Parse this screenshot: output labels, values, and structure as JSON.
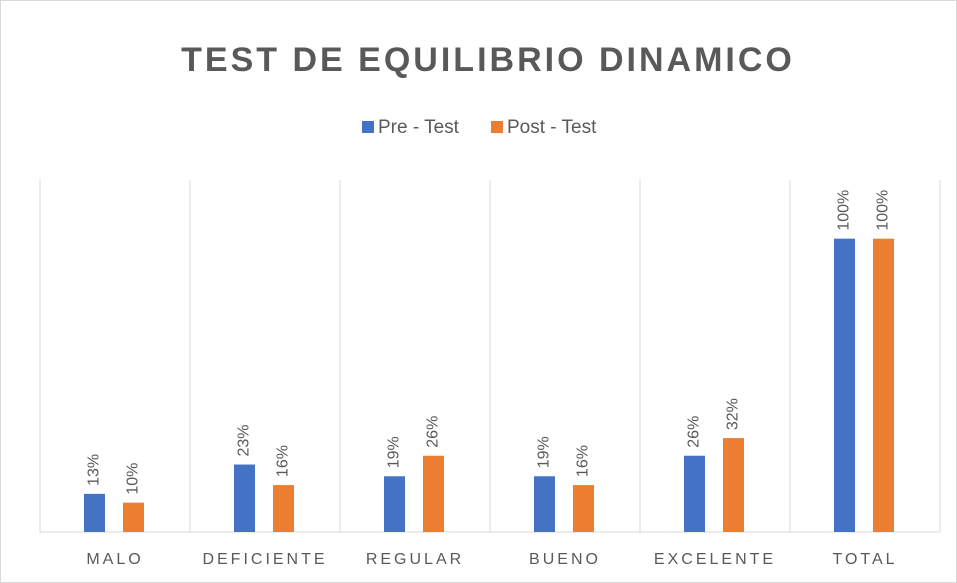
{
  "chart_data": {
    "type": "bar",
    "title": "TEST DE EQUILIBRIO DINAMICO",
    "categories": [
      "MALO",
      "DEFICIENTE",
      "REGULAR",
      "BUENO",
      "EXCELENTE",
      "TOTAL"
    ],
    "series": [
      {
        "name": "Pre - Test",
        "color": "#4472c4",
        "values": [
          13,
          23,
          19,
          19,
          26,
          100
        ],
        "value_labels": [
          "13%",
          "23%",
          "19%",
          "19%",
          "26%",
          "100%"
        ]
      },
      {
        "name": "Post - Test",
        "color": "#ed7d31",
        "values": [
          10,
          16,
          26,
          16,
          32,
          100
        ],
        "value_labels": [
          "10%",
          "16%",
          "26%",
          "16%",
          "32%",
          "100%"
        ]
      }
    ],
    "ylim": [
      0,
      120
    ]
  }
}
